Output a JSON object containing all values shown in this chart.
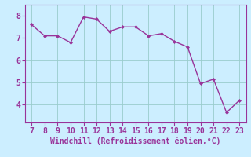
{
  "x": [
    7,
    8,
    9,
    10,
    11,
    12,
    13,
    14,
    15,
    16,
    17,
    18,
    19,
    20,
    21,
    22,
    23
  ],
  "y": [
    7.6,
    7.1,
    7.1,
    6.8,
    7.95,
    7.85,
    7.3,
    7.5,
    7.5,
    7.1,
    7.2,
    6.85,
    6.6,
    4.95,
    5.15,
    3.65,
    4.2
  ],
  "line_color": "#993399",
  "marker_color": "#993399",
  "bg_color": "#cceeff",
  "grid_color": "#99cccc",
  "xlabel": "Windchill (Refroidissement éolien,°C)",
  "xlim": [
    6.5,
    23.5
  ],
  "ylim": [
    3.2,
    8.5
  ],
  "yticks": [
    4,
    5,
    6,
    7,
    8
  ],
  "xticks": [
    7,
    8,
    9,
    10,
    11,
    12,
    13,
    14,
    15,
    16,
    17,
    18,
    19,
    20,
    21,
    22,
    23
  ],
  "xlabel_color": "#993399",
  "tick_color": "#993399",
  "spine_color": "#993399",
  "font_size": 7,
  "xlabel_font_size": 7
}
